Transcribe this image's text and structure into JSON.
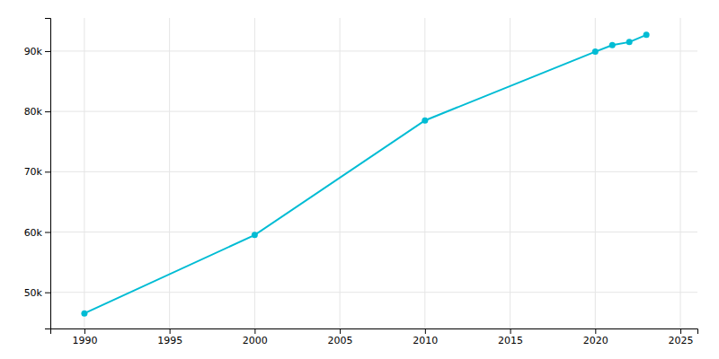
{
  "chart_data": {
    "type": "line",
    "x": [
      1990,
      2000,
      2010,
      2020,
      2021,
      2022,
      2023
    ],
    "values": [
      46500,
      59500,
      78500,
      89900,
      91000,
      91500,
      92700
    ],
    "color": "#00bcd4",
    "marker": "circle",
    "xlim": [
      1988,
      2026
    ],
    "ylim": [
      44000,
      95500
    ],
    "xticks": [
      1990,
      1995,
      2000,
      2005,
      2010,
      2015,
      2020,
      2025
    ],
    "yticks": [
      {
        "value": 50000,
        "label": "50k"
      },
      {
        "value": 60000,
        "label": "60k"
      },
      {
        "value": 70000,
        "label": "70k"
      },
      {
        "value": 80000,
        "label": "80k"
      },
      {
        "value": 90000,
        "label": "90k"
      }
    ],
    "grid": true
  }
}
